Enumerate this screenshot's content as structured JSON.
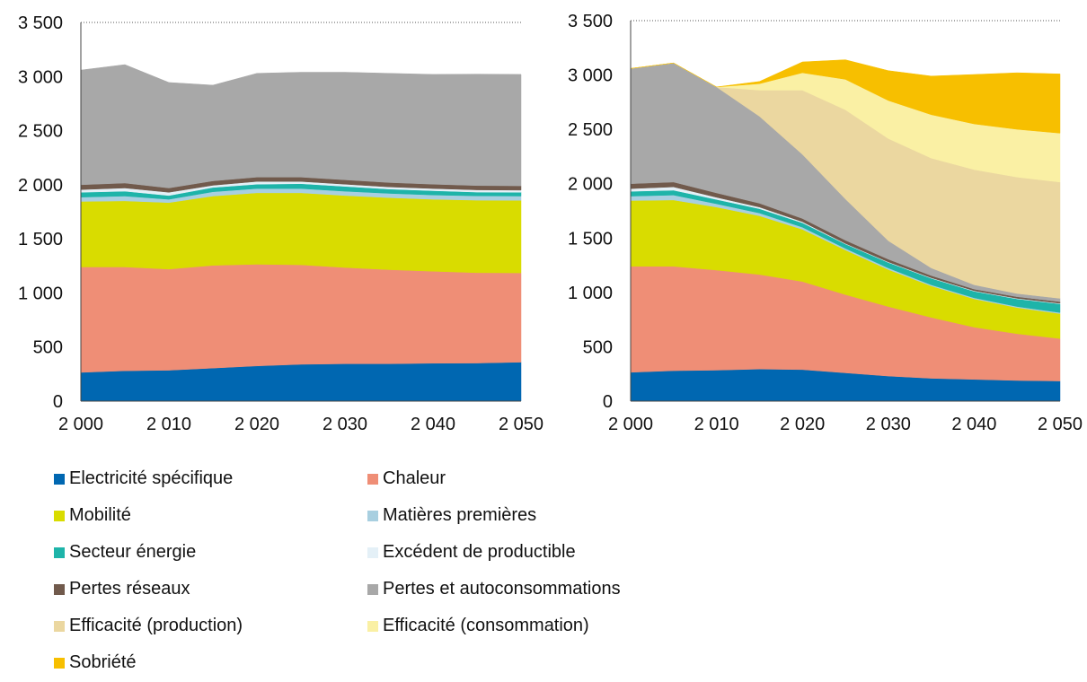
{
  "chart_data": [
    {
      "type": "area",
      "stacked": true,
      "x": [
        2000,
        2005,
        2010,
        2015,
        2020,
        2025,
        2030,
        2035,
        2040,
        2045,
        2050
      ],
      "x_ticks": [
        "2 000",
        "2 010",
        "2 020",
        "2 030",
        "2 040",
        "2 050"
      ],
      "y_ticks": [
        "0",
        "500",
        "1 000",
        "1 500",
        "2 000",
        "2 500",
        "3 000",
        "3 500"
      ],
      "xlim": [
        2000,
        2050
      ],
      "ylim": [
        0,
        3500
      ],
      "grid": "top line only",
      "series": [
        {
          "key": "elec",
          "values": [
            265,
            280,
            285,
            305,
            325,
            340,
            345,
            345,
            350,
            352,
            360
          ]
        },
        {
          "key": "chal",
          "values": [
            975,
            960,
            935,
            950,
            940,
            920,
            890,
            870,
            850,
            835,
            825
          ]
        },
        {
          "key": "mob",
          "values": [
            605,
            610,
            615,
            640,
            660,
            665,
            665,
            665,
            665,
            670,
            670
          ]
        },
        {
          "key": "mat",
          "values": [
            40,
            45,
            30,
            40,
            40,
            40,
            40,
            40,
            40,
            40,
            40
          ]
        },
        {
          "key": "sect",
          "values": [
            45,
            45,
            35,
            40,
            40,
            45,
            45,
            40,
            40,
            35,
            35
          ]
        },
        {
          "key": "exce",
          "values": [
            25,
            30,
            30,
            20,
            25,
            20,
            20,
            20,
            20,
            20,
            20
          ]
        },
        {
          "key": "pert",
          "values": [
            45,
            45,
            40,
            40,
            40,
            40,
            40,
            40,
            40,
            40,
            40
          ]
        },
        {
          "key": "auto",
          "values": [
            1060,
            1095,
            975,
            885,
            960,
            970,
            995,
            1010,
            1015,
            1030,
            1030
          ]
        }
      ]
    },
    {
      "type": "area",
      "stacked": true,
      "x": [
        2000,
        2005,
        2010,
        2015,
        2020,
        2025,
        2030,
        2035,
        2040,
        2045,
        2050
      ],
      "x_ticks": [
        "2 000",
        "2 010",
        "2 020",
        "2 030",
        "2 040",
        "2 050"
      ],
      "y_ticks": [
        "0",
        "500",
        "1 000",
        "1 500",
        "2 000",
        "2 500",
        "3 000",
        "3 500"
      ],
      "xlim": [
        2000,
        2050
      ],
      "ylim": [
        0,
        3500
      ],
      "grid": "top line only",
      "series": [
        {
          "key": "elec",
          "values": [
            265,
            280,
            285,
            295,
            290,
            260,
            230,
            210,
            200,
            190,
            185
          ]
        },
        {
          "key": "chal",
          "values": [
            975,
            960,
            920,
            870,
            810,
            720,
            640,
            560,
            480,
            430,
            390
          ]
        },
        {
          "key": "mob",
          "values": [
            605,
            610,
            580,
            540,
            480,
            410,
            340,
            290,
            260,
            240,
            230
          ]
        },
        {
          "key": "mat",
          "values": [
            40,
            45,
            30,
            25,
            20,
            15,
            15,
            10,
            10,
            10,
            10
          ]
        },
        {
          "key": "sect",
          "values": [
            45,
            45,
            40,
            40,
            40,
            40,
            50,
            60,
            60,
            70,
            80
          ]
        },
        {
          "key": "exce",
          "values": [
            25,
            30,
            20,
            15,
            10,
            5,
            5,
            5,
            5,
            5,
            5
          ]
        },
        {
          "key": "pert",
          "values": [
            45,
            45,
            40,
            35,
            30,
            30,
            25,
            20,
            15,
            15,
            15
          ]
        },
        {
          "key": "auto",
          "values": [
            1060,
            1095,
            975,
            800,
            590,
            380,
            170,
            70,
            40,
            30,
            30
          ]
        },
        {
          "key": "effp",
          "values": [
            0,
            0,
            0,
            240,
            590,
            820,
            940,
            1010,
            1060,
            1070,
            1070
          ]
        },
        {
          "key": "effc",
          "values": [
            0,
            0,
            0,
            60,
            160,
            280,
            350,
            400,
            420,
            440,
            450
          ]
        },
        {
          "key": "sobr",
          "values": [
            0,
            0,
            0,
            20,
            100,
            180,
            275,
            355,
            455,
            520,
            545
          ]
        }
      ]
    }
  ],
  "legend": [
    {
      "key": "elec",
      "label": "Electricité spécifique",
      "color": "#0067b1"
    },
    {
      "key": "chal",
      "label": "Chaleur",
      "color": "#ef8e76"
    },
    {
      "key": "mob",
      "label": "Mobilité",
      "color": "#d9dc00"
    },
    {
      "key": "mat",
      "label": "Matières premières",
      "color": "#a8cfe0"
    },
    {
      "key": "sect",
      "label": "Secteur énergie",
      "color": "#1eb4a9"
    },
    {
      "key": "exce",
      "label": "Excédent de productible",
      "color": "#e4f0f7"
    },
    {
      "key": "pert",
      "label": "Pertes réseaux",
      "color": "#715a4c"
    },
    {
      "key": "auto",
      "label": "Pertes et autoconsommations",
      "color": "#a8a8a8"
    },
    {
      "key": "effp",
      "label": "Efficacité (production)",
      "color": "#ebd7a0"
    },
    {
      "key": "effc",
      "label": "Efficacité (consommation)",
      "color": "#faf0a4"
    },
    {
      "key": "sobr",
      "label": "Sobriété",
      "color": "#f7bf00"
    }
  ]
}
